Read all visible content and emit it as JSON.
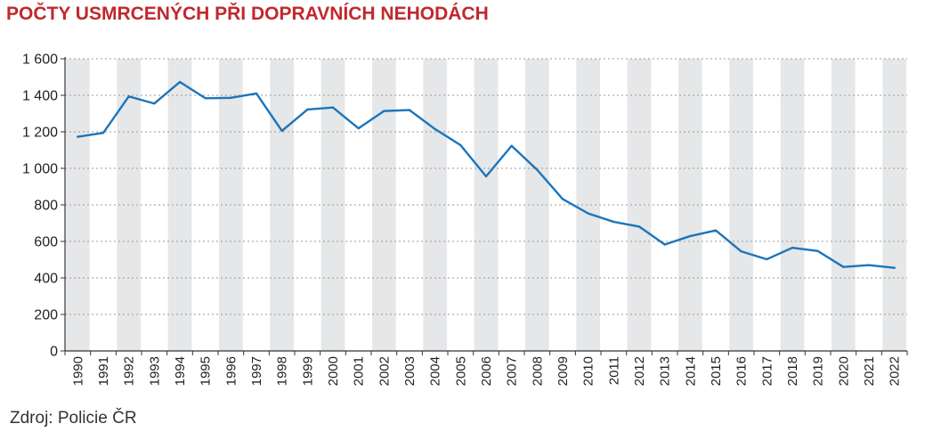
{
  "chart_data": {
    "type": "line",
    "title": "POČTY USMRCENÝCH PŘI DOPRAVNÍCH NEHODÁCH",
    "source": "Zdroj: Policie ČR",
    "xlabel": "",
    "ylabel": "",
    "ylim": [
      0,
      1600
    ],
    "yticks": [
      0,
      200,
      400,
      600,
      800,
      1000,
      1200,
      1400,
      1600
    ],
    "ytick_labels": [
      "0",
      "200",
      "400",
      "600",
      "800",
      "1 000",
      "1 200",
      "1 400",
      "1 600"
    ],
    "grid": "horizontal dotted",
    "alternating_year_bands": true,
    "categories": [
      "1990",
      "1991",
      "1992",
      "1993",
      "1994",
      "1995",
      "1996",
      "1997",
      "1998",
      "1999",
      "2000",
      "2001",
      "2002",
      "2003",
      "2004",
      "2005",
      "2006",
      "2007",
      "2008",
      "2009",
      "2010",
      "2011",
      "2012",
      "2013",
      "2014",
      "2015",
      "2016",
      "2017",
      "2018",
      "2019",
      "2020",
      "2021",
      "2022"
    ],
    "series": [
      {
        "values": [
          1173,
          1194,
          1394,
          1355,
          1473,
          1384,
          1386,
          1410,
          1205,
          1322,
          1333,
          1219,
          1314,
          1319,
          1215,
          1127,
          956,
          1123,
          992,
          832,
          753,
          707,
          681,
          583,
          629,
          660,
          545,
          502,
          565,
          547,
          460,
          470,
          455
        ],
        "color": "#1b75bb"
      }
    ],
    "band_color": "#e6e7e8",
    "grid_color": "#9a9a9a",
    "axis_color": "#333333",
    "title_color": "#c0282d"
  }
}
